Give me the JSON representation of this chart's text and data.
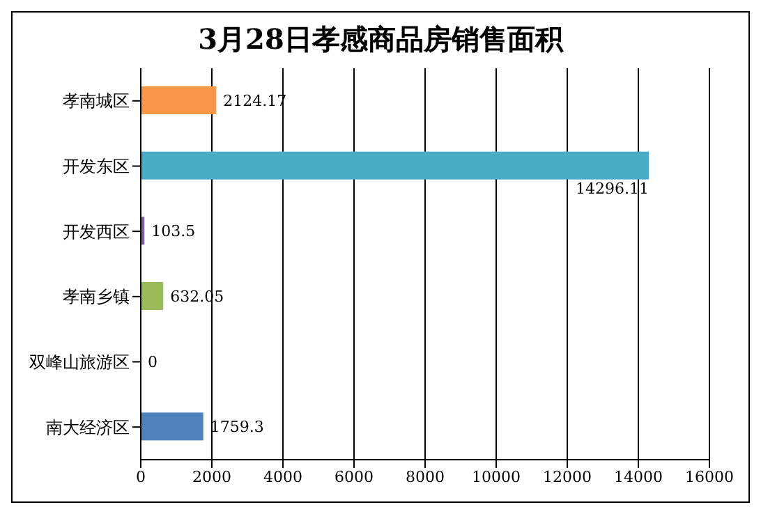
{
  "chart_data": {
    "type": "bar",
    "orientation": "horizontal",
    "title": "3月28日孝感商品房销售面积",
    "categories": [
      "孝南城区",
      "开发东区",
      "开发西区",
      "孝南乡镇",
      "双峰山旅游区",
      "南大经济区"
    ],
    "values": [
      2124.17,
      14296.11,
      103.5,
      632.05,
      0,
      1759.3
    ],
    "colors": [
      "#f79646",
      "#4bacc6",
      "#8064a2",
      "#9bbb59",
      "#c0504d",
      "#4f81bd"
    ],
    "xlim": [
      0,
      16000
    ],
    "xticks": [
      0,
      2000,
      4000,
      6000,
      8000,
      10000,
      12000,
      14000,
      16000
    ],
    "grid": "x",
    "data_labels": true
  }
}
